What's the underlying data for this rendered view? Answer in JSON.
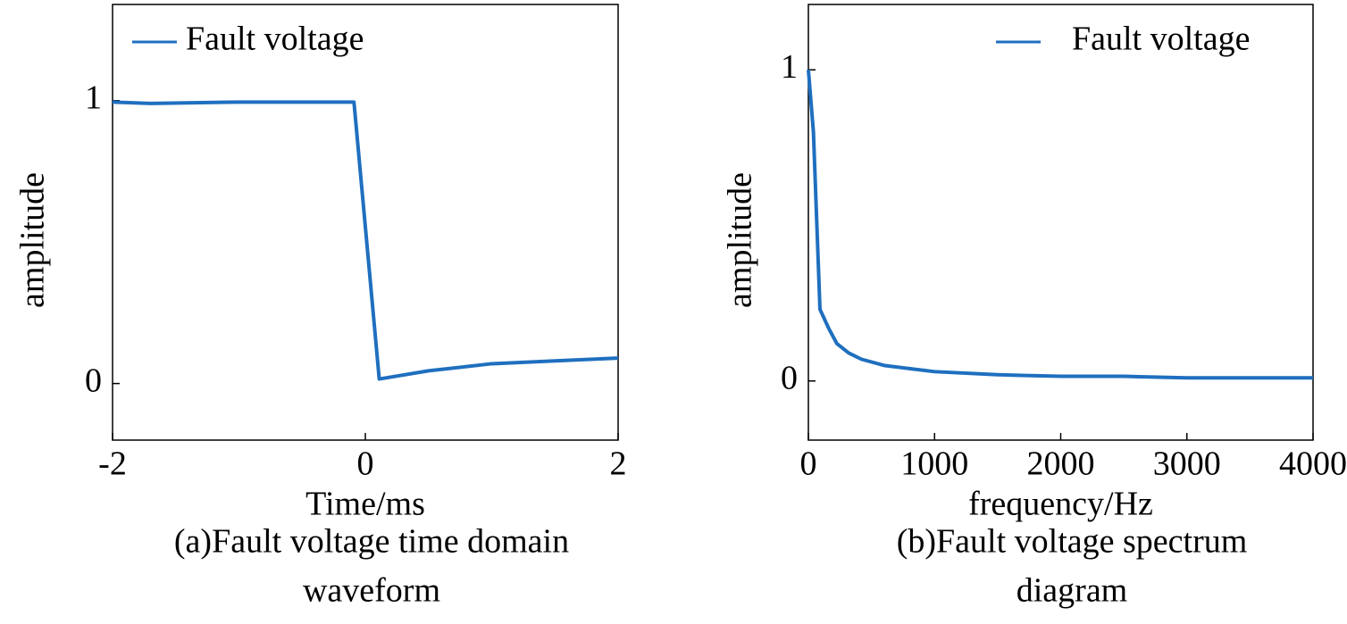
{
  "chart_data": [
    {
      "type": "line",
      "xlabel": "Time/ms",
      "ylabel": "amplitude",
      "caption": [
        "(a)Fault voltage time domain",
        "waveform"
      ],
      "xlim": [
        -2,
        2
      ],
      "ylim": [
        -0.2,
        1.34
      ],
      "xticks": [
        -2,
        0,
        2
      ],
      "yticks": [
        0,
        1
      ],
      "legend": "upper left",
      "series": [
        {
          "name": "Fault voltage",
          "color": "#1f6fbf",
          "x": [
            -2,
            -1.7,
            -1,
            -0.09,
            0.11,
            0.5,
            1,
            1.5,
            2
          ],
          "values": [
            0.995,
            0.99,
            0.995,
            0.995,
            0.016,
            0.045,
            0.07,
            0.08,
            0.09
          ]
        }
      ]
    },
    {
      "type": "line",
      "xlabel": "frequency/Hz",
      "ylabel": "amplitude",
      "caption": [
        "(b)Fault voltage spectrum",
        "diagram"
      ],
      "xlim": [
        0,
        4000
      ],
      "ylim": [
        -0.19,
        1.21
      ],
      "xticks": [
        0,
        1000,
        2000,
        3000,
        4000
      ],
      "yticks": [
        0,
        1
      ],
      "legend": "upper right",
      "series": [
        {
          "name": "Fault voltage",
          "color": "#1f6fbf",
          "x": [
            0,
            40,
            92,
            160,
            226,
            320,
            420,
            600,
            800,
            1000,
            1500,
            2000,
            2500,
            3000,
            3500,
            4000
          ],
          "values": [
            1.0,
            0.8,
            0.23,
            0.17,
            0.12,
            0.09,
            0.07,
            0.05,
            0.04,
            0.03,
            0.02,
            0.015,
            0.015,
            0.01,
            0.01,
            0.01
          ]
        }
      ]
    }
  ]
}
